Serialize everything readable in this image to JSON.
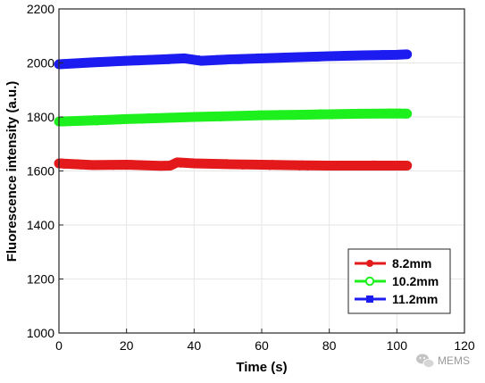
{
  "chart_data": {
    "type": "line",
    "title": "",
    "xlabel": "Time (s)",
    "ylabel": "Fluorescence intensity (a.u.)",
    "xlim": [
      0,
      120
    ],
    "ylim": [
      1000,
      2200
    ],
    "xticks": [
      0,
      20,
      40,
      60,
      80,
      100,
      120
    ],
    "yticks": [
      1000,
      1200,
      1400,
      1600,
      1800,
      2000,
      2200
    ],
    "grid": true,
    "legend_position": "bottom-right",
    "series": [
      {
        "name": "8.2mm",
        "color": "#e3191b",
        "marker": "circle",
        "x": [
          0,
          10,
          20,
          30,
          33,
          35,
          40,
          50,
          60,
          70,
          80,
          90,
          100,
          103
        ],
        "y": [
          1628,
          1622,
          1623,
          1619,
          1620,
          1632,
          1628,
          1625,
          1623,
          1621,
          1620,
          1620,
          1620,
          1620
        ]
      },
      {
        "name": "10.2mm",
        "color": "#1df01d",
        "marker": "circle-open",
        "x": [
          0,
          10,
          20,
          30,
          40,
          50,
          60,
          70,
          80,
          90,
          100,
          103
        ],
        "y": [
          1783,
          1787,
          1792,
          1796,
          1800,
          1803,
          1806,
          1808,
          1810,
          1812,
          1813,
          1812
        ]
      },
      {
        "name": "11.2mm",
        "color": "#1c1cf0",
        "marker": "square",
        "x": [
          0,
          10,
          20,
          30,
          37,
          42,
          50,
          60,
          70,
          80,
          90,
          100,
          103
        ],
        "y": [
          1995,
          2002,
          2008,
          2013,
          2017,
          2008,
          2013,
          2017,
          2021,
          2025,
          2028,
          2030,
          2032
        ]
      }
    ]
  },
  "watermark": {
    "text": "MEMS",
    "icon": "wechat-icon"
  }
}
